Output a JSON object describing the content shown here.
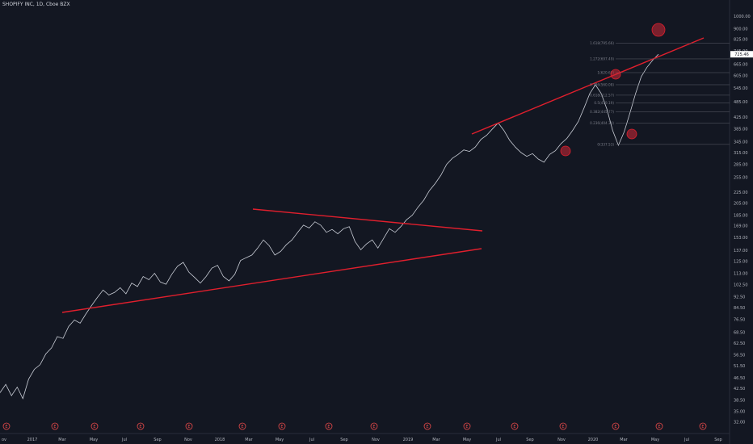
{
  "chart_data": {
    "type": "line",
    "title": "SHOPIFY INC, 1D, Cboe BZX",
    "last_price_label": "725.46",
    "y_scale": "log",
    "ylim": [
      29,
      1150
    ],
    "y_ticks": [
      "1000.00",
      "900.00",
      "825.00",
      "745.00",
      "665.00",
      "605.00",
      "545.00",
      "485.00",
      "425.00",
      "385.00",
      "345.00",
      "315.00",
      "285.00",
      "255.00",
      "225.00",
      "205.00",
      "185.00",
      "169.00",
      "153.00",
      "137.00",
      "125.00",
      "113.00",
      "102.50",
      "92.50",
      "84.50",
      "76.50",
      "68.50",
      "62.50",
      "56.50",
      "51.50",
      "46.50",
      "42.50",
      "38.50",
      "35.00",
      "32.00"
    ],
    "x_ticks": [
      "ov",
      "2017",
      "Mar",
      "May",
      "Jul",
      "Sep",
      "Nov",
      "2018",
      "Mar",
      "May",
      "Jul",
      "Sep",
      "Nov",
      "2019",
      "Mar",
      "May",
      "Jul",
      "Sep",
      "Nov",
      "2020",
      "Mar",
      "May",
      "Jul",
      "Sep"
    ],
    "series": [
      {
        "values": [
          41,
          44,
          40,
          43,
          39,
          46,
          50,
          52,
          57,
          60,
          66,
          65,
          72,
          76,
          74,
          80,
          86,
          92,
          98,
          94,
          96,
          100,
          95,
          104,
          101,
          110,
          107,
          113,
          105,
          103,
          112,
          120,
          124,
          114,
          109,
          104,
          110,
          118,
          121,
          110,
          106,
          112,
          126,
          129,
          132,
          140,
          150,
          143,
          132,
          136,
          144,
          150,
          160,
          170,
          166,
          175,
          170,
          160,
          164,
          158,
          165,
          168,
          148,
          138,
          145,
          150,
          140,
          152,
          165,
          160,
          168,
          178,
          185,
          198,
          210,
          228,
          242,
          260,
          285,
          300,
          310,
          322,
          318,
          330,
          352,
          365,
          385,
          405,
          380,
          350,
          330,
          315,
          305,
          312,
          298,
          290,
          310,
          320,
          340,
          355,
          380,
          410,
          460,
          520,
          560,
          520,
          455,
          380,
          335,
          375,
          440,
          520,
          600,
          650,
          690,
          725.46
        ]
      }
    ],
    "fib_levels": [
      {
        "label": "1.618(795.66)",
        "value": 795.66
      },
      {
        "label": "1.272(697.49)",
        "value": 697.49
      },
      {
        "label": "1(620.67)",
        "value": 620.67
      },
      {
        "label": "0.786(560.08)",
        "value": 560.08
      },
      {
        "label": "0.618(512.57)",
        "value": 512.57
      },
      {
        "label": "0.5(479.19)",
        "value": 479.19
      },
      {
        "label": "0.382(445.77)",
        "value": 445.77
      },
      {
        "label": "0.236(404.34)",
        "value": 404.34
      },
      {
        "label": "0(337.53)",
        "value": 337.53
      }
    ],
    "earnings_marker": "E",
    "earnings_count": 16,
    "trendlines_color": "#e01f2d",
    "price_line_color": "#c9cdd6",
    "background": "#131722"
  }
}
